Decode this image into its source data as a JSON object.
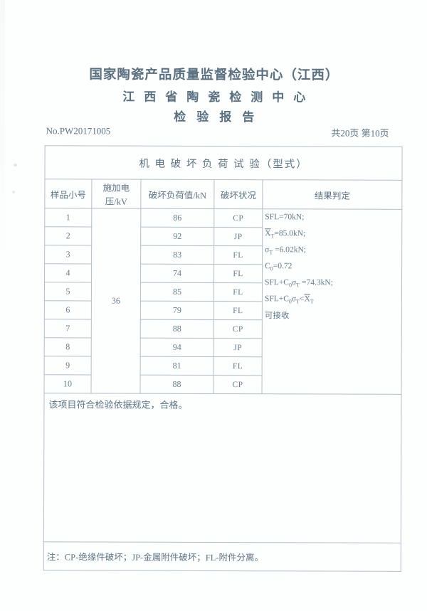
{
  "header": {
    "org_line1": "国家陶瓷产品质量监督检验中心（江西）",
    "org_line2": "江西省陶瓷检测中心",
    "doc_title": "检验报告",
    "report_no": "No.PW20171005",
    "page_info": "共20页 第10页"
  },
  "table": {
    "title": "机 电 破 坏 负 荷 试 验（型式）",
    "columns": [
      "样品小号",
      "施加电压/kV",
      "破坏负荷值/kN",
      "破坏状况",
      "结果判定"
    ],
    "applied_voltage": "36",
    "rows": [
      {
        "sample_no": "1",
        "load_kn": "86",
        "failure_mode": "CP"
      },
      {
        "sample_no": "2",
        "load_kn": "92",
        "failure_mode": "JP"
      },
      {
        "sample_no": "3",
        "load_kn": "83",
        "failure_mode": "FL"
      },
      {
        "sample_no": "4",
        "load_kn": "74",
        "failure_mode": "FL"
      },
      {
        "sample_no": "5",
        "load_kn": "85",
        "failure_mode": "FL"
      },
      {
        "sample_no": "6",
        "load_kn": "79",
        "failure_mode": "FL"
      },
      {
        "sample_no": "7",
        "load_kn": "88",
        "failure_mode": "CP"
      },
      {
        "sample_no": "8",
        "load_kn": "94",
        "failure_mode": "JP"
      },
      {
        "sample_no": "9",
        "load_kn": "81",
        "failure_mode": "FL"
      },
      {
        "sample_no": "10",
        "load_kn": "88",
        "failure_mode": "CP"
      }
    ],
    "result_lines": [
      [
        {
          "t": "SFL=70kN;"
        }
      ],
      [
        {
          "t": "X",
          "ov": true
        },
        {
          "t": "T",
          "sub": true
        },
        {
          "t": "=85.0kN;"
        }
      ],
      [
        {
          "t": "σ"
        },
        {
          "t": "T",
          "sub": true
        },
        {
          "t": " =6.02kN;"
        }
      ],
      [
        {
          "t": "C"
        },
        {
          "t": "0",
          "sub": true
        },
        {
          "t": "=0.72"
        }
      ],
      [
        {
          "t": "SFL+C"
        },
        {
          "t": "0",
          "sub": true
        },
        {
          "t": "σ"
        },
        {
          "t": "T",
          "sub": true
        },
        {
          "t": " =74.3kN;"
        }
      ],
      [
        {
          "t": "SFL+C"
        },
        {
          "t": "0",
          "sub": true
        },
        {
          "t": "σ"
        },
        {
          "t": "T",
          "sub": true
        },
        {
          "t": "<"
        },
        {
          "t": "X",
          "ov": true
        },
        {
          "t": "T",
          "sub": true
        }
      ],
      [
        {
          "t": "可接收"
        }
      ]
    ],
    "remark": "该项目符合检验依据规定，合格。",
    "note": "注：CP-绝缘件破坏；JP-金属附件破坏；FL-附件分离。"
  },
  "colors": {
    "text": "#617687",
    "heading": "#5a7080",
    "border": "#b2bec9",
    "background": "#fdfefe"
  }
}
